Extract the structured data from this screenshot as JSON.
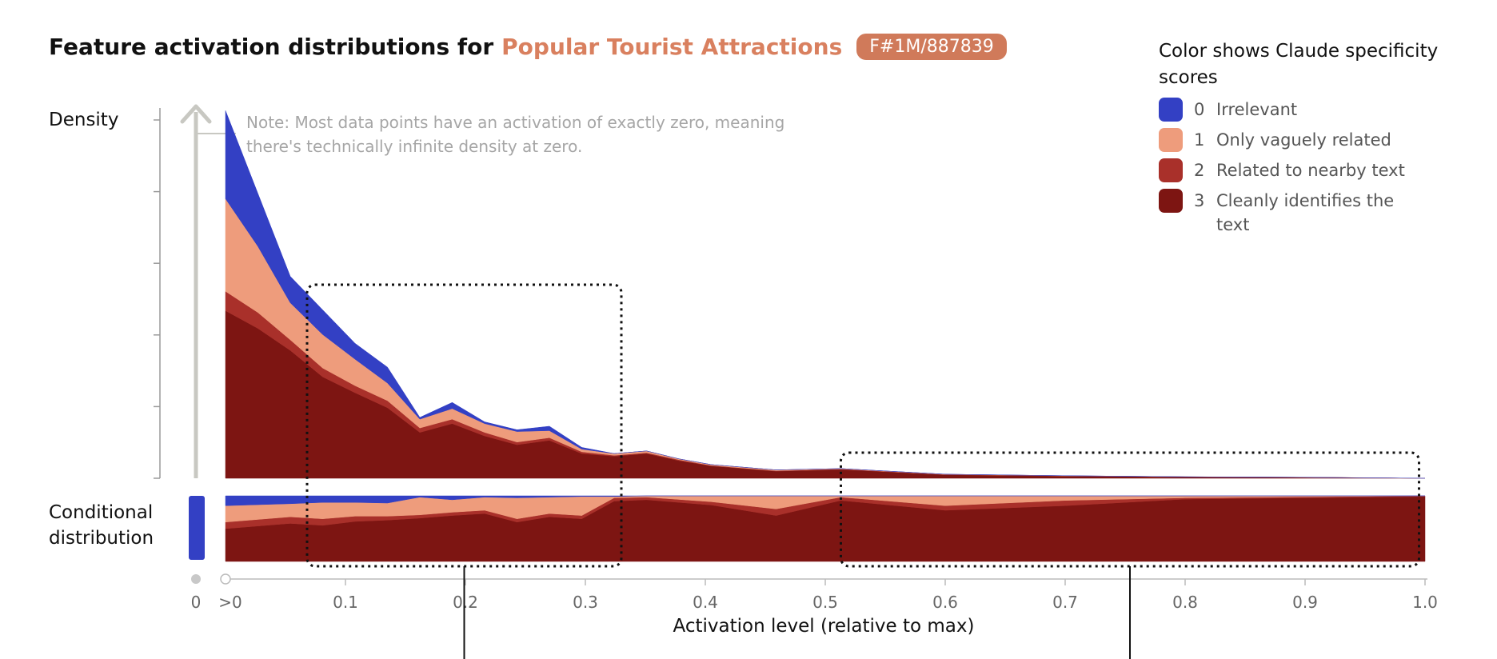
{
  "header": {
    "title_prefix": "Feature activation distributions for",
    "feature_name": "Popular Tourist Attractions",
    "feature_id": "F#1M/887839"
  },
  "legend": {
    "title": "Color shows Claude specificity scores",
    "items": [
      {
        "score": "0",
        "label": "Irrelevant",
        "color": "#3340c4"
      },
      {
        "score": "1",
        "label": "Only vaguely related",
        "color": "#ee9c7c"
      },
      {
        "score": "2",
        "label": "Related to nearby text",
        "color": "#a9302a"
      },
      {
        "score": "3",
        "label": "Cleanly identifies the text",
        "color": "#7d1512"
      }
    ]
  },
  "axes": {
    "density_label": "Density",
    "conditional_label": "Conditional distribution",
    "x_label": "Activation level (relative to max)",
    "x_tick_zero": "0",
    "x_tick_gt_zero": ">0"
  },
  "note": "Note: Most data points have an activation of exactly zero, meaning there's technically infinite density at zero.",
  "chart_data": {
    "type": "area",
    "stacked": true,
    "title": "Feature activation distributions for Popular Tourist Attractions",
    "xlabel": "Activation level (relative to max)",
    "ylabel": "Density",
    "xlim": [
      0,
      1.0
    ],
    "ylim": [
      0,
      4.2
    ],
    "x_ticks": [
      "0.1",
      "0.2",
      "0.3",
      "0.4",
      "0.5",
      "0.6",
      "0.7",
      "0.8",
      "0.9",
      "1.0"
    ],
    "x": [
      0.0,
      0.027,
      0.054,
      0.081,
      0.108,
      0.135,
      0.162,
      0.189,
      0.216,
      0.243,
      0.27,
      0.297,
      0.324,
      0.351,
      0.378,
      0.405,
      0.459,
      0.513,
      0.6,
      0.7,
      0.8,
      0.9,
      1.0
    ],
    "series": [
      {
        "name": "3",
        "label": "Cleanly identifies the text",
        "values": [
          1.9,
          1.7,
          1.45,
          1.15,
          0.97,
          0.8,
          0.52,
          0.62,
          0.48,
          0.38,
          0.43,
          0.28,
          0.25,
          0.28,
          0.2,
          0.14,
          0.08,
          0.1,
          0.04,
          0.025,
          0.015,
          0.01,
          0.0
        ]
      },
      {
        "name": "2",
        "label": "Related to nearby text",
        "values": [
          0.22,
          0.18,
          0.12,
          0.1,
          0.08,
          0.08,
          0.05,
          0.05,
          0.04,
          0.03,
          0.03,
          0.02,
          0.01,
          0.01,
          0.01,
          0.005,
          0.005,
          0.005,
          0.003,
          0.002,
          0.001,
          0.001,
          0.0
        ]
      },
      {
        "name": "1",
        "label": "Only vaguely related",
        "values": [
          1.05,
          0.75,
          0.42,
          0.38,
          0.3,
          0.2,
          0.1,
          0.12,
          0.1,
          0.12,
          0.08,
          0.03,
          0.02,
          0.02,
          0.01,
          0.01,
          0.01,
          0.005,
          0.003,
          0.002,
          0.001,
          0.0,
          0.0
        ]
      },
      {
        "name": "0",
        "label": "Irrelevant",
        "values": [
          1.0,
          0.6,
          0.3,
          0.28,
          0.18,
          0.18,
          0.02,
          0.07,
          0.02,
          0.02,
          0.05,
          0.02,
          0.0,
          0.0,
          0.0,
          0.0,
          0.0,
          0.0,
          0.0,
          0.0,
          0.0,
          0.0,
          0.0
        ]
      }
    ],
    "conditional_distribution": {
      "at_zero": {
        "0": 1.0,
        "1": 0.0,
        "2": 0.0,
        "3": 0.0
      },
      "x": [
        0.0,
        0.054,
        0.081,
        0.108,
        0.135,
        0.162,
        0.189,
        0.216,
        0.243,
        0.27,
        0.297,
        0.324,
        0.351,
        0.405,
        0.459,
        0.513,
        0.6,
        0.7,
        0.8,
        1.0
      ],
      "series": [
        {
          "name": "3",
          "values": [
            0.5,
            0.58,
            0.55,
            0.61,
            0.63,
            0.66,
            0.7,
            0.73,
            0.6,
            0.68,
            0.65,
            0.92,
            0.94,
            0.86,
            0.7,
            0.93,
            0.78,
            0.85,
            0.95,
            0.99
          ]
        },
        {
          "name": "2",
          "values": [
            0.1,
            0.1,
            0.1,
            0.08,
            0.06,
            0.05,
            0.05,
            0.05,
            0.05,
            0.05,
            0.05,
            0.05,
            0.04,
            0.05,
            0.1,
            0.05,
            0.07,
            0.08,
            0.02,
            0.01
          ]
        },
        {
          "name": "1",
          "values": [
            0.25,
            0.2,
            0.25,
            0.21,
            0.2,
            0.27,
            0.19,
            0.2,
            0.32,
            0.25,
            0.29,
            0.02,
            0.02,
            0.09,
            0.2,
            0.02,
            0.15,
            0.07,
            0.03,
            0.0
          ]
        },
        {
          "name": "0",
          "values": [
            0.15,
            0.12,
            0.1,
            0.1,
            0.11,
            0.02,
            0.06,
            0.02,
            0.03,
            0.02,
            0.01,
            0.01,
            0.0,
            0.0,
            0.0,
            0.0,
            0.0,
            0.0,
            0.0,
            0.0
          ]
        }
      ]
    },
    "highlight_ranges": [
      [
        0.068,
        0.33
      ],
      [
        0.513,
        0.995
      ]
    ]
  }
}
